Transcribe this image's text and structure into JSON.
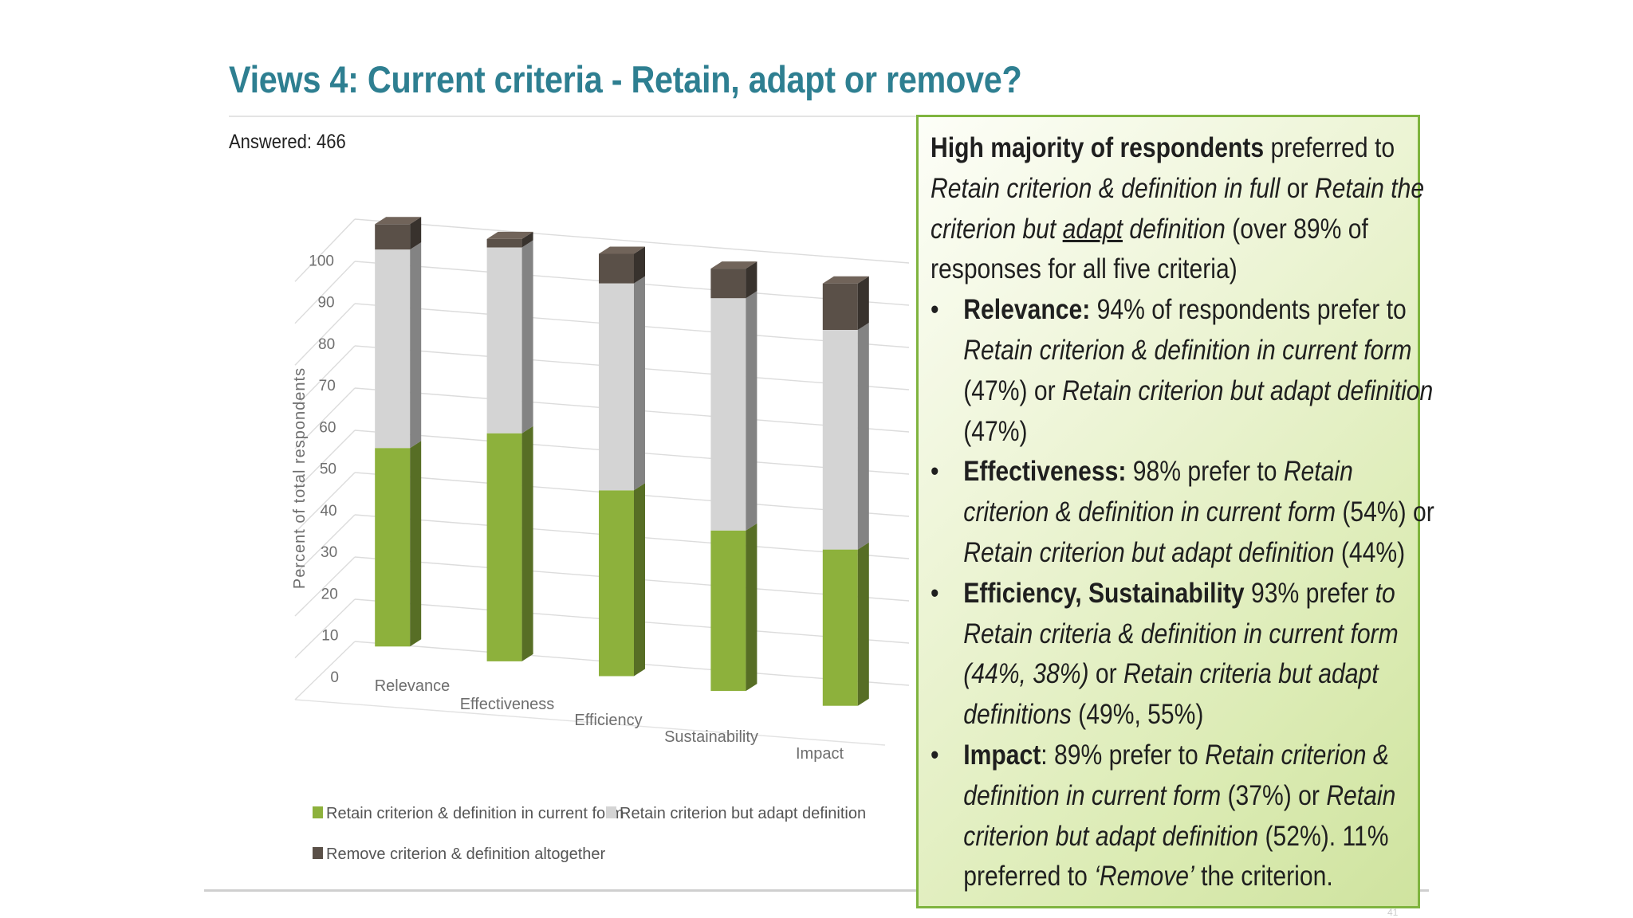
{
  "slide": {
    "title": "Views 4: Current criteria - Retain, adapt or remove?",
    "answered": "Answered: 466",
    "page_number": "41"
  },
  "colors": {
    "title": "#2e7f91",
    "retain": "#8db13c",
    "adapt": "#d4d4d4",
    "remove": "#5a5048",
    "callout_border": "#7fb43f"
  },
  "chart_data": {
    "type": "bar",
    "stacked": true,
    "three_d": true,
    "ylabel": "Percent of total respondents",
    "xlabel": "",
    "ylim": [
      0,
      100
    ],
    "yticks": [
      "0",
      "10",
      "20",
      "30",
      "40",
      "50",
      "60",
      "70",
      "80",
      "90",
      "100"
    ],
    "categories": [
      "Relevance",
      "Effectiveness",
      "Efficiency",
      "Sustainability",
      "Impact"
    ],
    "series": [
      {
        "name": "Retain criterion & definition in current form",
        "color": "#8db13c",
        "values": [
          47,
          54,
          44,
          38,
          37
        ]
      },
      {
        "name": "Retain criterion but adapt definition",
        "color": "#d4d4d4",
        "values": [
          47,
          44,
          49,
          55,
          52
        ]
      },
      {
        "name": "Remove criterion & definition altogether",
        "color": "#5a5048",
        "values": [
          6,
          2,
          7,
          7,
          11
        ]
      }
    ],
    "legend_position": "bottom"
  },
  "callout": {
    "intro_bold": "High majority of respondents",
    "intro_1": " preferred to ",
    "intro_i1": "Retain criterion & definition in full",
    "intro_2": " or ",
    "intro_i2": "Retain the criterion but ",
    "intro_u": "adapt",
    "intro_i3": " definition",
    "intro_3": " (over 89% of responses for all five criteria)",
    "b1_bold": "Relevance:",
    "b1_t1": " 94% of respondents prefer to ",
    "b1_i1": "Retain criterion & definition in current form",
    "b1_t2": " (47%) or ",
    "b1_i2": "Retain criterion but adapt definition",
    "b1_t3": " (47%)",
    "b2_bold": "Effectiveness:",
    "b2_t1": " 98% prefer to ",
    "b2_i1": "Retain criterion & definition in current form",
    "b2_t2": " (54%) or ",
    "b2_i2": "Retain criterion but adapt definition",
    "b2_t3": " (44%)",
    "b3_bold": "Efficiency, Sustainability",
    "b3_t1": " 93% prefer ",
    "b3_i1": "to Retain criteria & definition in current form (44%, 38%)",
    "b3_t2": " or ",
    "b3_i2": "Retain criteria but adapt definitions",
    "b3_t3": " (49%, 55%)",
    "b4_bold": "Impact",
    "b4_t1": ": 89% prefer to ",
    "b4_i1": "Retain criterion & definition in current form",
    "b4_t2": " (37%) or ",
    "b4_i2": "Retain criterion but adapt definition",
    "b4_t3": " (52%). 11% preferred to ",
    "b4_i3": "‘Remove’",
    "b4_t4": " the criterion."
  }
}
